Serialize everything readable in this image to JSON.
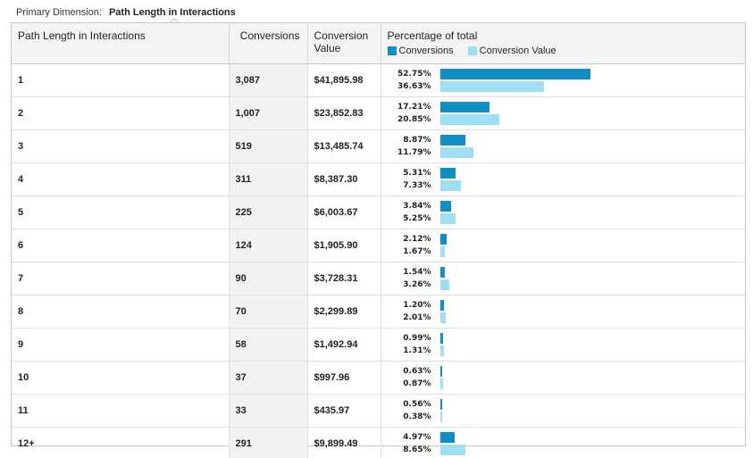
{
  "primary_dimension": {
    "label": "Primary Dimension:",
    "value": "Path Length in Interactions"
  },
  "columns": {
    "path": "Path Length in Interactions",
    "conversions": "Conversions",
    "conversion_value_line1": "Conversion",
    "conversion_value_line2": "Value",
    "percentage": "Percentage of total"
  },
  "legend": {
    "conversions": "Conversions",
    "conversion_value": "Conversion Value",
    "conversions_color": "#0f8fc4",
    "conversion_value_color": "#9fdff3"
  },
  "rows": [
    {
      "path": "1",
      "conversions": "3,087",
      "value": "$41,895.98",
      "pct_conv": "52.75%",
      "pct_val": "36.63%",
      "conv_frac": 0.5275,
      "val_frac": 0.3663
    },
    {
      "path": "2",
      "conversions": "1,007",
      "value": "$23,852.83",
      "pct_conv": "17.21%",
      "pct_val": "20.85%",
      "conv_frac": 0.1721,
      "val_frac": 0.2085
    },
    {
      "path": "3",
      "conversions": "519",
      "value": "$13,485.74",
      "pct_conv": "8.87%",
      "pct_val": "11.79%",
      "conv_frac": 0.0887,
      "val_frac": 0.1179
    },
    {
      "path": "4",
      "conversions": "311",
      "value": "$8,387.30",
      "pct_conv": "5.31%",
      "pct_val": "7.33%",
      "conv_frac": 0.0531,
      "val_frac": 0.0733
    },
    {
      "path": "5",
      "conversions": "225",
      "value": "$6,003.67",
      "pct_conv": "3.84%",
      "pct_val": "5.25%",
      "conv_frac": 0.0384,
      "val_frac": 0.0525
    },
    {
      "path": "6",
      "conversions": "124",
      "value": "$1,905.90",
      "pct_conv": "2.12%",
      "pct_val": "1.67%",
      "conv_frac": 0.0212,
      "val_frac": 0.0167
    },
    {
      "path": "7",
      "conversions": "90",
      "value": "$3,728.31",
      "pct_conv": "1.54%",
      "pct_val": "3.26%",
      "conv_frac": 0.0154,
      "val_frac": 0.0326
    },
    {
      "path": "8",
      "conversions": "70",
      "value": "$2,299.89",
      "pct_conv": "1.20%",
      "pct_val": "2.01%",
      "conv_frac": 0.012,
      "val_frac": 0.0201
    },
    {
      "path": "9",
      "conversions": "58",
      "value": "$1,492.94",
      "pct_conv": "0.99%",
      "pct_val": "1.31%",
      "conv_frac": 0.0099,
      "val_frac": 0.0131
    },
    {
      "path": "10",
      "conversions": "37",
      "value": "$997.96",
      "pct_conv": "0.63%",
      "pct_val": "0.87%",
      "conv_frac": 0.0063,
      "val_frac": 0.0087
    },
    {
      "path": "11",
      "conversions": "33",
      "value": "$435.97",
      "pct_conv": "0.56%",
      "pct_val": "0.38%",
      "conv_frac": 0.0056,
      "val_frac": 0.0038
    },
    {
      "path": "12+",
      "conversions": "291",
      "value": "$9,899.49",
      "pct_conv": "4.97%",
      "pct_val": "8.65%",
      "conv_frac": 0.0497,
      "val_frac": 0.0865
    }
  ]
}
